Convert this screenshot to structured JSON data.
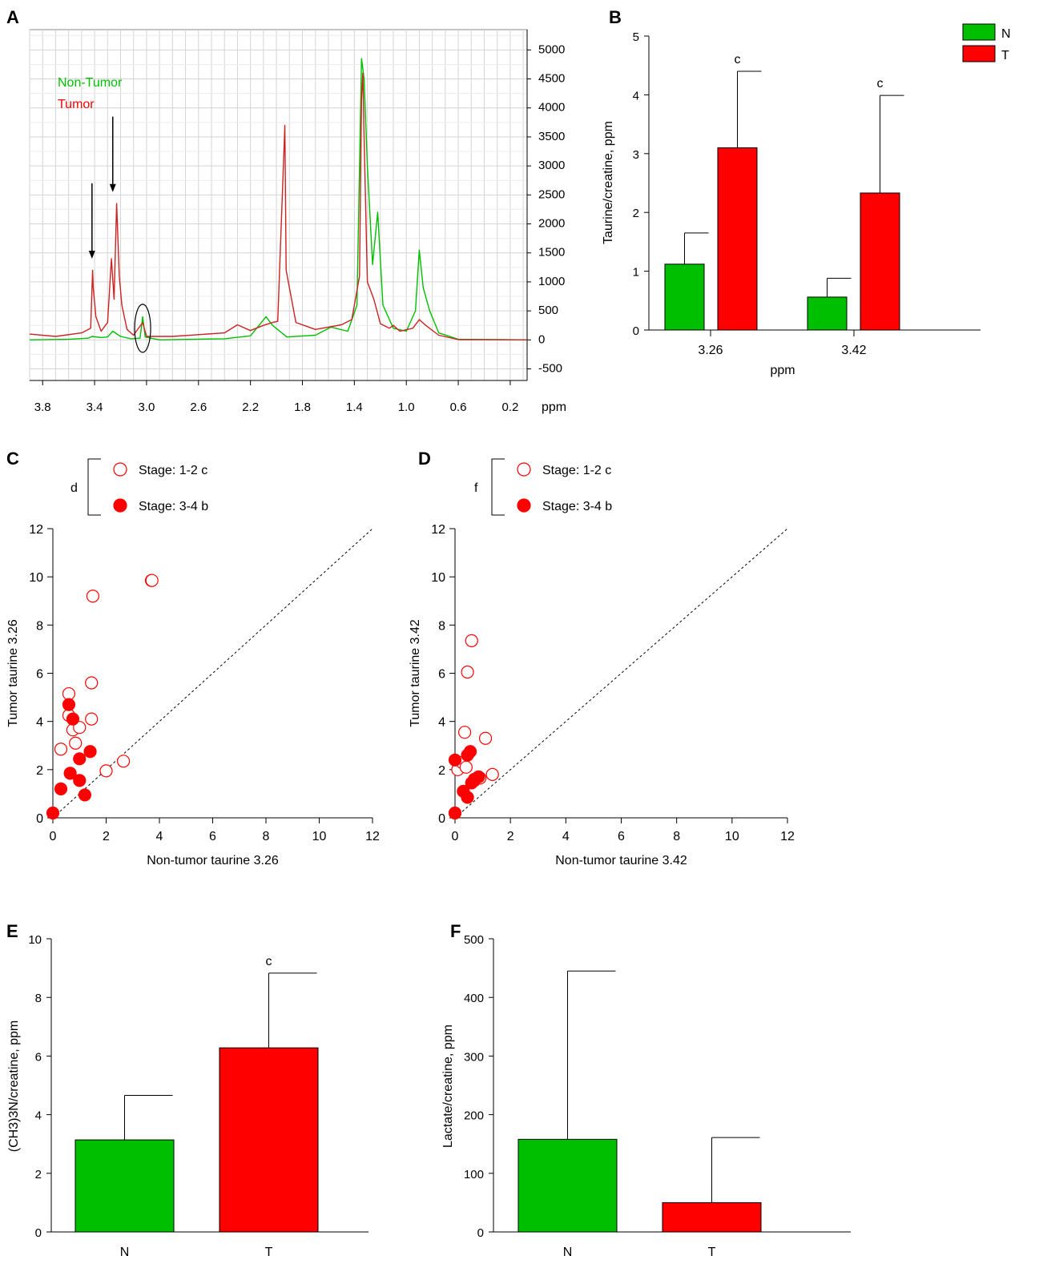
{
  "panels": {
    "A": "A",
    "B": "B",
    "C": "C",
    "D": "D",
    "E": "E",
    "F": "F"
  },
  "colors": {
    "normal": "#00bf00",
    "tumor": "#ff0000",
    "nontumor_trace": "#3cb44b",
    "tumor_trace": "#cc2222",
    "overlap": "#aa2288"
  },
  "chart_data": [
    {
      "id": "A",
      "type": "line",
      "xlabel": "ppm",
      "x_ticks": [
        "3.8",
        "3.4",
        "3.0",
        "2.6",
        "2.2",
        "1.8",
        "1.4",
        "1.0",
        "0.6",
        "0.2"
      ],
      "x_range": [
        3.9,
        0.07
      ],
      "y_ticks": [
        "5000",
        "4500",
        "4000",
        "3500",
        "3000",
        "2500",
        "2000",
        "1500",
        "1000",
        "500",
        "0",
        "-500"
      ],
      "y_range": [
        -700,
        5350
      ],
      "series": [
        {
          "name": "Non-Tumor",
          "color": "#00bf00",
          "points": [
            [
              3.9,
              0
            ],
            [
              3.6,
              10
            ],
            [
              3.45,
              30
            ],
            [
              3.42,
              60
            ],
            [
              3.35,
              40
            ],
            [
              3.3,
              50
            ],
            [
              3.26,
              150
            ],
            [
              3.2,
              60
            ],
            [
              3.12,
              20
            ],
            [
              3.05,
              30
            ],
            [
              3.03,
              400
            ],
            [
              3.01,
              50
            ],
            [
              2.9,
              0
            ],
            [
              2.4,
              20
            ],
            [
              2.2,
              70
            ],
            [
              2.08,
              400
            ],
            [
              2.03,
              250
            ],
            [
              1.92,
              50
            ],
            [
              1.7,
              80
            ],
            [
              1.58,
              220
            ],
            [
              1.45,
              150
            ],
            [
              1.38,
              600
            ],
            [
              1.345,
              4850
            ],
            [
              1.325,
              4500
            ],
            [
              1.3,
              3000
            ],
            [
              1.26,
              1300
            ],
            [
              1.22,
              2200
            ],
            [
              1.18,
              600
            ],
            [
              1.1,
              200
            ],
            [
              1.0,
              150
            ],
            [
              0.93,
              500
            ],
            [
              0.9,
              1550
            ],
            [
              0.87,
              900
            ],
            [
              0.82,
              500
            ],
            [
              0.75,
              120
            ],
            [
              0.6,
              10
            ],
            [
              0.07,
              0
            ]
          ]
        },
        {
          "name": "Tumor",
          "color": "#cc2222",
          "points": [
            [
              3.9,
              100
            ],
            [
              3.7,
              60
            ],
            [
              3.5,
              120
            ],
            [
              3.43,
              200
            ],
            [
              3.415,
              1200
            ],
            [
              3.41,
              900
            ],
            [
              3.39,
              400
            ],
            [
              3.35,
              150
            ],
            [
              3.3,
              300
            ],
            [
              3.27,
              1400
            ],
            [
              3.25,
              700
            ],
            [
              3.23,
              2350
            ],
            [
              3.21,
              1100
            ],
            [
              3.19,
              600
            ],
            [
              3.15,
              180
            ],
            [
              3.1,
              80
            ],
            [
              3.03,
              300
            ],
            [
              3.0,
              60
            ],
            [
              2.8,
              60
            ],
            [
              2.4,
              120
            ],
            [
              2.3,
              260
            ],
            [
              2.2,
              160
            ],
            [
              2.1,
              250
            ],
            [
              2.03,
              300
            ],
            [
              1.99,
              320
            ],
            [
              1.935,
              3700
            ],
            [
              1.925,
              1200
            ],
            [
              1.85,
              300
            ],
            [
              1.7,
              180
            ],
            [
              1.5,
              260
            ],
            [
              1.42,
              350
            ],
            [
              1.36,
              1100
            ],
            [
              1.345,
              4150
            ],
            [
              1.335,
              4600
            ],
            [
              1.325,
              3500
            ],
            [
              1.3,
              1000
            ],
            [
              1.25,
              700
            ],
            [
              1.2,
              280
            ],
            [
              1.13,
              200
            ],
            [
              1.1,
              250
            ],
            [
              1.05,
              150
            ],
            [
              0.95,
              200
            ],
            [
              0.9,
              350
            ],
            [
              0.85,
              250
            ],
            [
              0.75,
              80
            ],
            [
              0.6,
              5
            ],
            [
              0.07,
              0
            ]
          ]
        }
      ],
      "legend": [
        "Non-Tumor",
        "Tumor"
      ],
      "annotations": [
        "arrow at 3.42 ppm",
        "arrow at 3.26 ppm",
        "circle at 3.03 ppm"
      ]
    },
    {
      "id": "B",
      "type": "bar",
      "xlabel": "ppm",
      "ylabel": "Taurine/creatine, ppm",
      "categories": [
        "3.26",
        "3.42"
      ],
      "ylim": [
        0,
        5
      ],
      "y_ticks": [
        0,
        1,
        2,
        3,
        4,
        5
      ],
      "series": [
        {
          "name": "N",
          "color": "#00bf00",
          "values": [
            1.12,
            0.56
          ],
          "errors": [
            0.53,
            0.32
          ]
        },
        {
          "name": "T",
          "color": "#ff0000",
          "values": [
            3.1,
            2.33
          ],
          "errors": [
            1.3,
            1.66
          ]
        }
      ],
      "significance": [
        "c",
        "c"
      ],
      "legend": [
        "N",
        "T"
      ]
    },
    {
      "id": "C",
      "type": "scatter",
      "xlabel": "Non-tumor taurine 3.26",
      "ylabel": "Tumor taurine 3.26",
      "xlim": [
        0,
        12
      ],
      "ylim": [
        0,
        12
      ],
      "ticks": [
        0,
        2,
        4,
        6,
        8,
        10,
        12
      ],
      "bracket_label": "d",
      "series": [
        {
          "name": "Stage: 1-2 c",
          "marker": "open",
          "points": [
            [
              0.3,
              2.85
            ],
            [
              0.6,
              5.15
            ],
            [
              0.6,
              4.25
            ],
            [
              0.75,
              3.65
            ],
            [
              0.85,
              3.1
            ],
            [
              1.0,
              3.75
            ],
            [
              1.45,
              5.6
            ],
            [
              1.45,
              4.1
            ],
            [
              1.5,
              9.2
            ],
            [
              2.0,
              1.95
            ],
            [
              2.65,
              2.35
            ],
            [
              3.7,
              9.85
            ],
            [
              3.72,
              9.85
            ]
          ]
        },
        {
          "name": "Stage: 3-4 b",
          "marker": "filled",
          "points": [
            [
              0.0,
              0.2
            ],
            [
              0.3,
              1.2
            ],
            [
              0.6,
              4.7
            ],
            [
              0.65,
              1.85
            ],
            [
              0.75,
              4.1
            ],
            [
              1.0,
              2.45
            ],
            [
              1.0,
              1.55
            ],
            [
              1.2,
              0.95
            ],
            [
              1.4,
              2.75
            ]
          ]
        }
      ]
    },
    {
      "id": "D",
      "type": "scatter",
      "xlabel": "Non-tumor taurine 3.42",
      "ylabel": "Tumor taurine 3.42",
      "xlim": [
        0,
        12
      ],
      "ylim": [
        0,
        12
      ],
      "ticks": [
        0,
        2,
        4,
        6,
        8,
        10,
        12
      ],
      "bracket_label": "f",
      "series": [
        {
          "name": "Stage: 1-2 c",
          "marker": "open",
          "points": [
            [
              0.1,
              2.0
            ],
            [
              0.25,
              2.3
            ],
            [
              0.35,
              3.55
            ],
            [
              0.4,
              2.1
            ],
            [
              0.45,
              6.05
            ],
            [
              0.6,
              7.35
            ],
            [
              0.7,
              1.55
            ],
            [
              0.9,
              1.65
            ],
            [
              1.1,
              3.3
            ],
            [
              1.35,
              1.8
            ]
          ]
        },
        {
          "name": "Stage: 3-4 b",
          "marker": "filled",
          "points": [
            [
              0.0,
              0.2
            ],
            [
              0.0,
              2.4
            ],
            [
              0.3,
              1.1
            ],
            [
              0.45,
              2.6
            ],
            [
              0.45,
              0.85
            ],
            [
              0.55,
              2.75
            ],
            [
              0.6,
              1.45
            ],
            [
              0.7,
              1.6
            ],
            [
              0.85,
              1.7
            ]
          ]
        }
      ]
    },
    {
      "id": "E",
      "type": "bar",
      "ylabel": "(CH3)3N/creatine, ppm",
      "categories": [
        "N",
        "T"
      ],
      "ylim": [
        0,
        10
      ],
      "y_ticks": [
        0,
        2,
        4,
        6,
        8,
        10
      ],
      "values": [
        3.14,
        6.28
      ],
      "errors": [
        1.52,
        2.55
      ],
      "colors": [
        "#00bf00",
        "#ff0000"
      ],
      "significance": [
        "",
        "c"
      ]
    },
    {
      "id": "F",
      "type": "bar",
      "ylabel": "Lactate/creatine, ppm",
      "categories": [
        "N",
        "T"
      ],
      "ylim": [
        0,
        500
      ],
      "y_ticks": [
        0,
        100,
        200,
        300,
        400,
        500
      ],
      "values": [
        158,
        50
      ],
      "errors": [
        287,
        111
      ],
      "colors": [
        "#00bf00",
        "#ff0000"
      ],
      "significance": [
        "",
        ""
      ]
    }
  ]
}
